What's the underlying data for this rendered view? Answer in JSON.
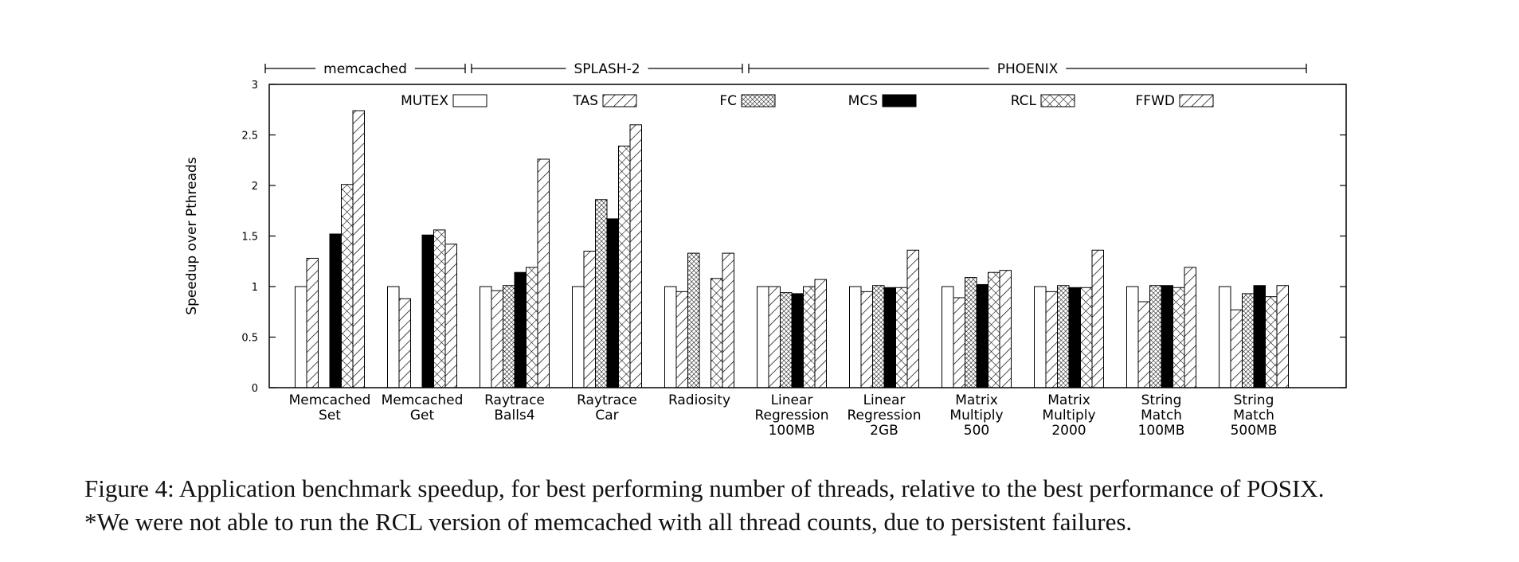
{
  "caption": {
    "line1": "Figure 4: Application benchmark speedup, for best performing number of threads, relative to the best performance of POSIX.",
    "line2": "*We were not able to run the RCL version of memcached with all thread counts, due to persistent failures."
  },
  "chart_data": {
    "type": "bar",
    "ylabel": "Speedup over Pthreads",
    "xlabel": "",
    "ylim": [
      0,
      3
    ],
    "yticks": [
      "0",
      "0.5",
      "1",
      "1.5",
      "2",
      "2.5",
      "3"
    ],
    "legend_placement": "top, inside plot",
    "groups": [
      {
        "label": "memcached",
        "from": 0,
        "to": 1
      },
      {
        "label": "SPLASH-2",
        "from": 2,
        "to": 4
      },
      {
        "label": "PHOENIX",
        "from": 5,
        "to": 10
      }
    ],
    "categories": [
      [
        "Memcached",
        "Set"
      ],
      [
        "Memcached",
        "Get"
      ],
      [
        "Raytrace",
        "Balls4"
      ],
      [
        "Raytrace",
        "Car"
      ],
      [
        "Radiosity"
      ],
      [
        "Linear",
        "Regression",
        "100MB"
      ],
      [
        "Linear",
        "Regression",
        "2GB"
      ],
      [
        "Matrix",
        "Multiply",
        "500"
      ],
      [
        "Matrix",
        "Multiply",
        "2000"
      ],
      [
        "String",
        "Match",
        "100MB"
      ],
      [
        "String",
        "Match",
        "500MB"
      ]
    ],
    "series": [
      {
        "name": "MUTEX",
        "pattern": "empty",
        "values": [
          1.0,
          1.0,
          1.0,
          1.0,
          1.0,
          1.0,
          1.0,
          1.0,
          1.0,
          1.0,
          1.0
        ]
      },
      {
        "name": "TAS",
        "pattern": "diag",
        "values": [
          1.28,
          0.88,
          0.96,
          1.35,
          0.95,
          1.0,
          0.95,
          0.89,
          0.95,
          0.85,
          0.77
        ]
      },
      {
        "name": "FC",
        "pattern": "fine-cross",
        "values": [
          null,
          null,
          1.01,
          1.86,
          1.33,
          0.94,
          1.01,
          1.09,
          1.01,
          1.01,
          0.93
        ]
      },
      {
        "name": "MCS",
        "pattern": "solid",
        "values": [
          1.52,
          1.51,
          1.14,
          1.67,
          null,
          0.93,
          0.99,
          1.02,
          0.99,
          1.01,
          1.01
        ]
      },
      {
        "name": "RCL",
        "pattern": "cross",
        "values": [
          2.01,
          1.56,
          1.19,
          2.39,
          1.08,
          1.0,
          0.99,
          1.14,
          0.99,
          0.99,
          0.9
        ]
      },
      {
        "name": "FFWD",
        "pattern": "diag",
        "values": [
          2.74,
          1.42,
          2.26,
          2.6,
          1.33,
          1.07,
          1.36,
          1.16,
          1.36,
          1.19,
          1.01
        ]
      }
    ]
  }
}
